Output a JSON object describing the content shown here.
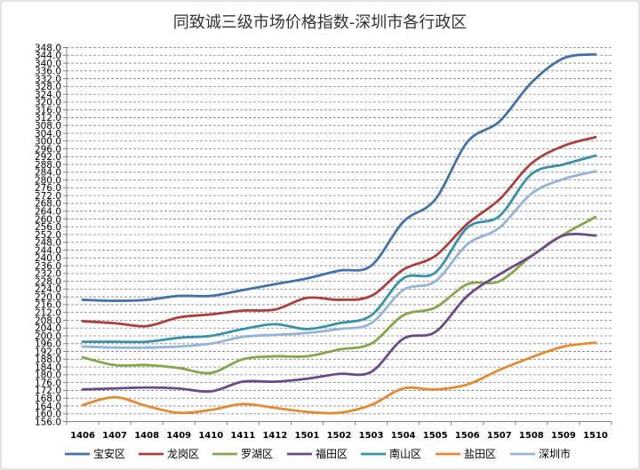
{
  "chart_data": {
    "type": "line",
    "title": "同致诚三级市场价格指数-深圳市各行政区",
    "xlabel": "",
    "ylabel": "",
    "categories": [
      "1406",
      "1407",
      "1408",
      "1409",
      "1410",
      "1411",
      "1412",
      "1501",
      "1502",
      "1503",
      "1504",
      "1505",
      "1506",
      "1507",
      "1508",
      "1509",
      "1510"
    ],
    "ylim": [
      156.0,
      348.0
    ],
    "ytick_step": 4.0,
    "grid": true,
    "legend_position": "bottom",
    "series": [
      {
        "name": "宝安区",
        "color": "#4472A8",
        "values": [
          218.5,
          218.0,
          218.5,
          220.5,
          220.5,
          223.5,
          226.5,
          229.5,
          233.5,
          236.0,
          258.5,
          270.0,
          299.5,
          310.0,
          330.0,
          342.5,
          344.5
        ]
      },
      {
        "name": "龙岗区",
        "color": "#A9403E",
        "values": [
          207.5,
          206.5,
          205.0,
          209.5,
          211.0,
          213.0,
          213.5,
          219.5,
          218.5,
          220.5,
          234.0,
          241.0,
          257.5,
          270.0,
          288.5,
          297.5,
          302.0
        ]
      },
      {
        "name": "罗湖区",
        "color": "#87A54C",
        "values": [
          189.0,
          185.0,
          185.0,
          183.5,
          181.0,
          188.0,
          189.5,
          189.5,
          193.0,
          196.0,
          210.5,
          214.5,
          226.5,
          228.0,
          241.0,
          252.0,
          261.0
        ]
      },
      {
        "name": "福田区",
        "color": "#6B4A8A",
        "values": [
          172.5,
          173.0,
          173.5,
          173.0,
          171.5,
          176.5,
          176.5,
          178.0,
          180.5,
          181.5,
          198.5,
          202.0,
          220.5,
          231.5,
          241.0,
          251.5,
          251.5
        ]
      },
      {
        "name": "南山区",
        "color": "#3891A7",
        "values": [
          197.0,
          197.0,
          197.0,
          199.0,
          200.0,
          203.5,
          206.0,
          203.5,
          206.5,
          210.5,
          229.5,
          232.5,
          255.5,
          261.5,
          283.0,
          288.0,
          292.5
        ]
      },
      {
        "name": "盐田区",
        "color": "#E38B32",
        "values": [
          164.5,
          168.5,
          164.0,
          160.5,
          162.0,
          165.0,
          163.0,
          161.0,
          160.5,
          164.5,
          173.0,
          172.5,
          175.0,
          182.5,
          189.0,
          194.5,
          196.5
        ]
      },
      {
        "name": "深圳市",
        "color": "#95B3D7",
        "values": [
          194.5,
          194.0,
          194.0,
          194.5,
          196.0,
          199.5,
          200.5,
          201.5,
          203.5,
          206.5,
          223.5,
          228.0,
          247.0,
          255.5,
          273.0,
          280.5,
          284.5
        ]
      }
    ]
  }
}
